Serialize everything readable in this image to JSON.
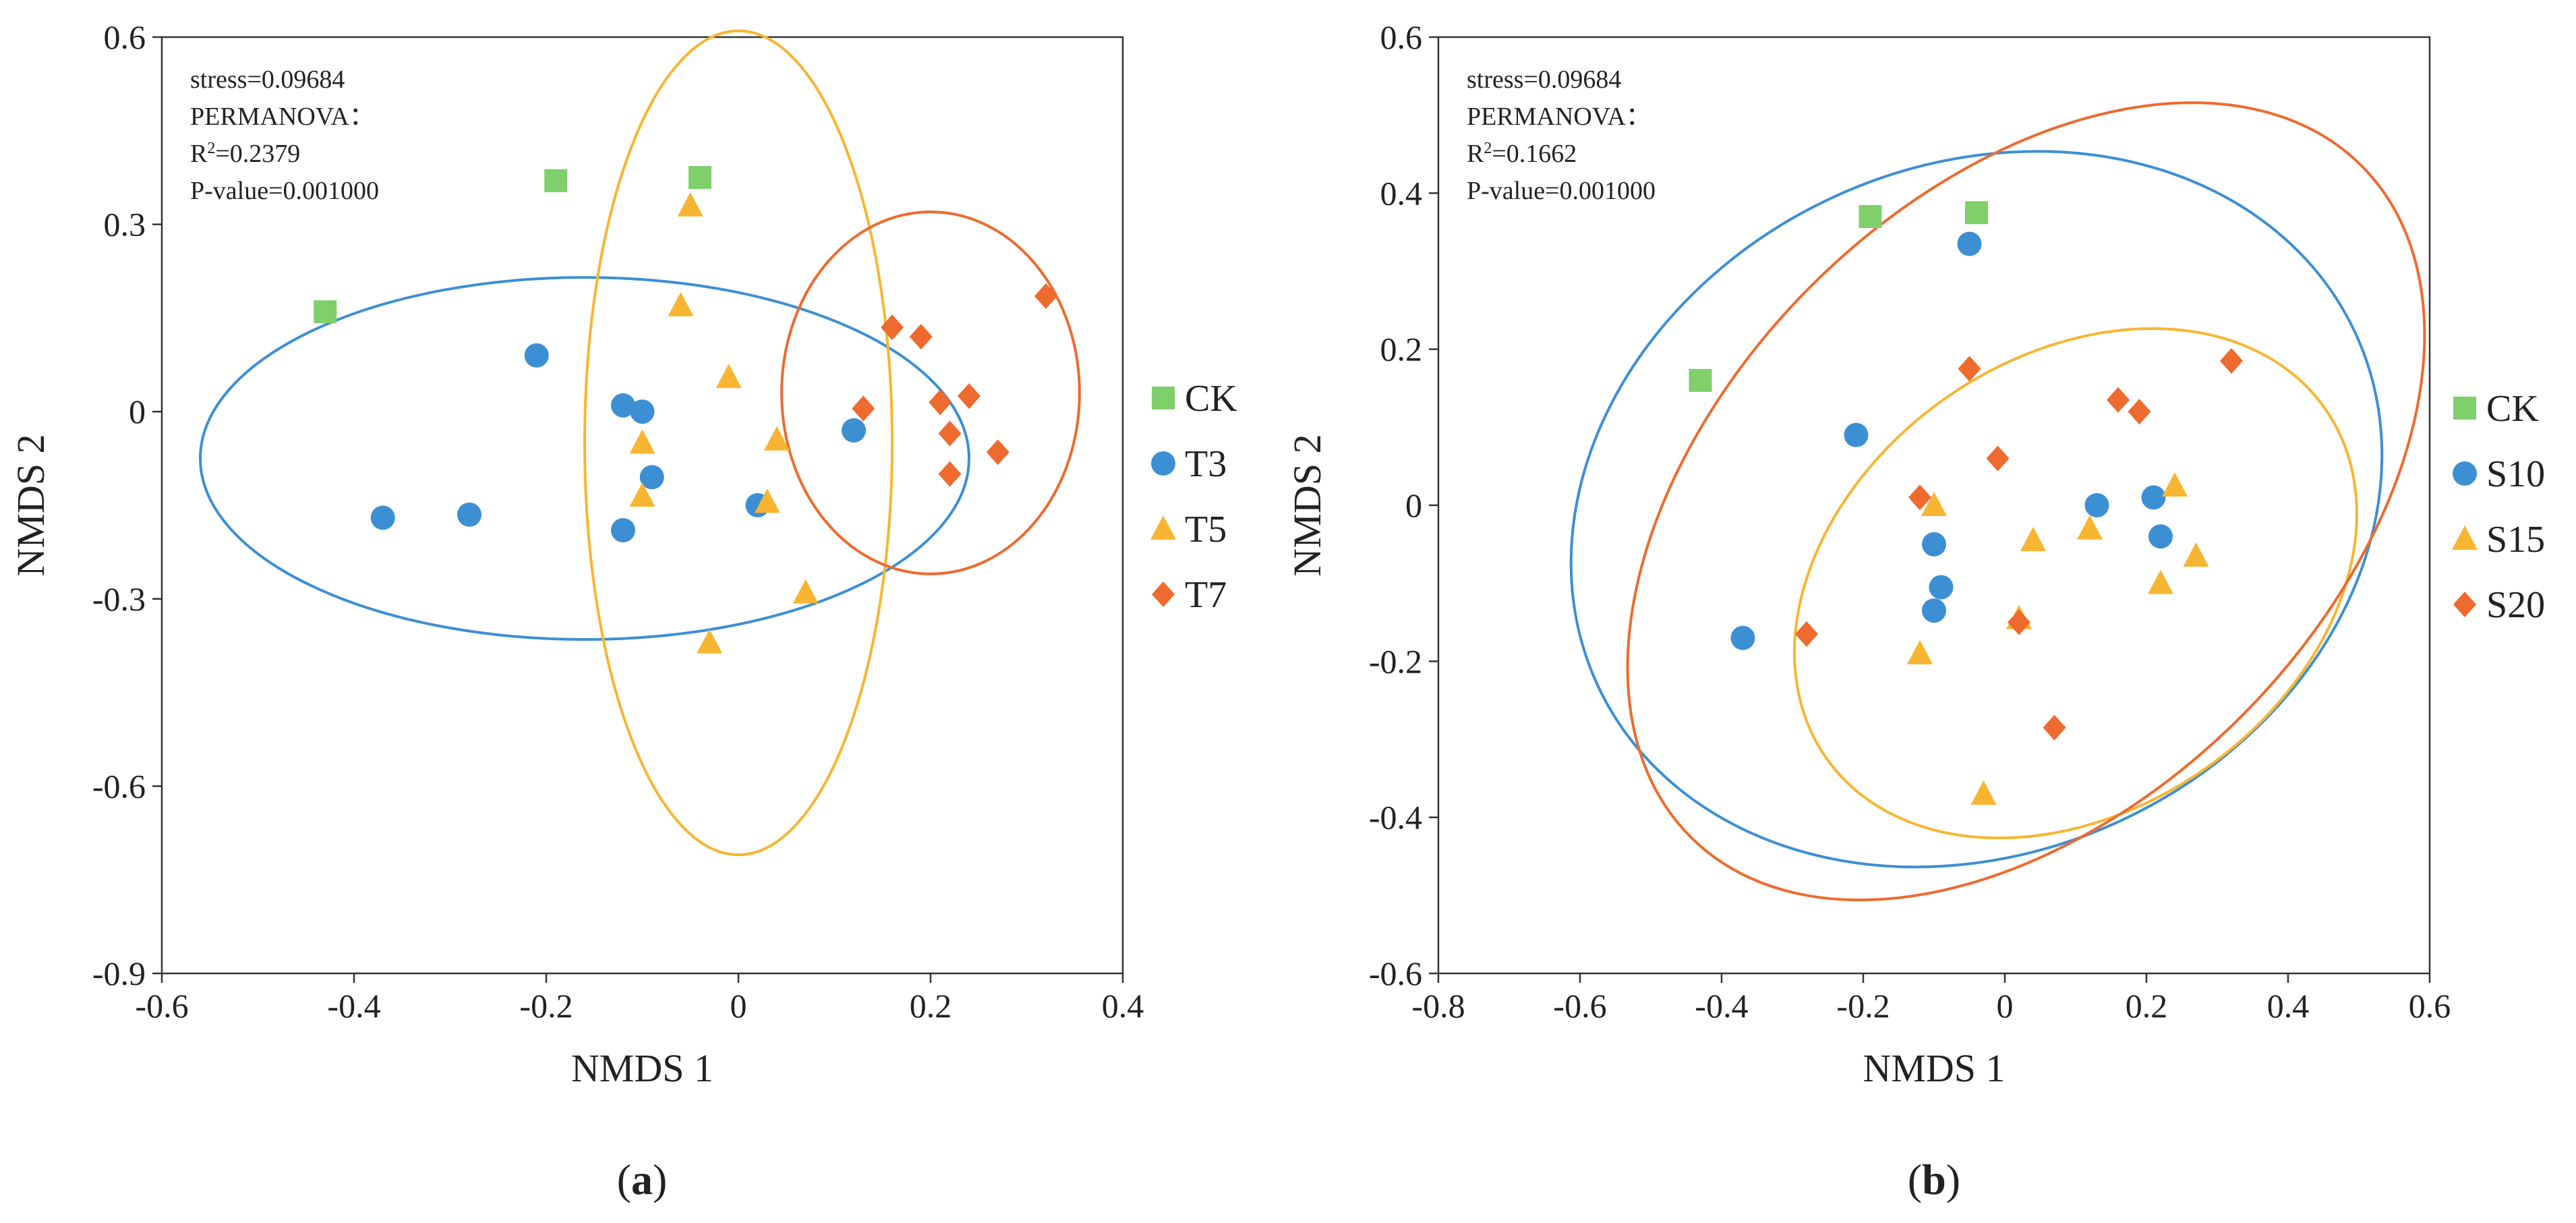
{
  "chart_data": [
    {
      "type": "scatter",
      "panel_label": "(a)",
      "xlabel": "NMDS 1",
      "ylabel": "NMDS 2",
      "xlim": [
        -0.6,
        0.4
      ],
      "ylim": [
        -0.9,
        0.6
      ],
      "xticks": [
        "-0.6",
        "-0.4",
        "-0.2",
        "0",
        "0.2",
        "0.4"
      ],
      "yticks": [
        "0.6",
        "0.3",
        "0",
        "-0.3",
        "-0.6",
        "-0.9"
      ],
      "annotation": [
        "stress=0.09684",
        "PERMANOVA：",
        "R²=0.2379",
        "P-value=0.001000"
      ],
      "legend_position": "right",
      "series": [
        {
          "name": "CK",
          "marker": "square",
          "color": "#7fcf6a",
          "points": [
            [
              -0.43,
              0.16
            ],
            [
              -0.19,
              0.37
            ],
            [
              -0.04,
              0.375
            ]
          ]
        },
        {
          "name": "T3",
          "marker": "circle",
          "color": "#3d8fd4",
          "points": [
            [
              -0.37,
              -0.17
            ],
            [
              -0.28,
              -0.165
            ],
            [
              -0.21,
              0.09
            ],
            [
              -0.12,
              0.01
            ],
            [
              -0.1,
              0.0
            ],
            [
              -0.09,
              -0.105
            ],
            [
              -0.12,
              -0.19
            ],
            [
              0.02,
              -0.15
            ],
            [
              0.12,
              -0.03
            ]
          ]
        },
        {
          "name": "T5",
          "marker": "triangle",
          "color": "#f7b531",
          "points": [
            [
              -0.05,
              0.33
            ],
            [
              -0.06,
              0.17
            ],
            [
              -0.01,
              0.055
            ],
            [
              -0.1,
              -0.05
            ],
            [
              -0.1,
              -0.135
            ],
            [
              0.04,
              -0.045
            ],
            [
              0.03,
              -0.145
            ],
            [
              -0.03,
              -0.37
            ],
            [
              0.07,
              -0.29
            ]
          ]
        },
        {
          "name": "T7",
          "marker": "diamond",
          "color": "#ee6a2e",
          "points": [
            [
              0.16,
              0.135
            ],
            [
              0.19,
              0.12
            ],
            [
              0.13,
              0.005
            ],
            [
              0.21,
              0.015
            ],
            [
              0.24,
              0.025
            ],
            [
              0.22,
              -0.035
            ],
            [
              0.22,
              -0.1
            ],
            [
              0.27,
              -0.065
            ],
            [
              0.32,
              0.185
            ]
          ]
        }
      ],
      "ellipses": [
        {
          "series": "T3",
          "center": [
            -0.16,
            -0.075
          ],
          "rx": 0.4,
          "ry": 0.29,
          "angle_deg": 0
        },
        {
          "series": "T5",
          "center": [
            -0.0,
            -0.05
          ],
          "rx": 0.16,
          "ry": 0.66,
          "angle_deg": 0
        },
        {
          "series": "T7",
          "center": [
            0.2,
            0.03
          ],
          "rx": 0.155,
          "ry": 0.29,
          "angle_deg": 0
        }
      ]
    },
    {
      "type": "scatter",
      "panel_label": "(b)",
      "xlabel": "NMDS 1",
      "ylabel": "NMDS 2",
      "xlim": [
        -0.8,
        0.6
      ],
      "ylim": [
        -0.6,
        0.6
      ],
      "xticks": [
        "-0.8",
        "-0.6",
        "-0.4",
        "-0.2",
        "0",
        "0.2",
        "0.4",
        "0.6"
      ],
      "yticks": [
        "0.6",
        "0.4",
        "0.2",
        "0",
        "-0.2",
        "-0.4",
        "-0.6"
      ],
      "annotation": [
        "stress=0.09684",
        "PERMANOVA：",
        "R²=0.1662",
        "P-value=0.001000"
      ],
      "legend_position": "right",
      "series": [
        {
          "name": "CK",
          "marker": "square",
          "color": "#7fcf6a",
          "points": [
            [
              -0.43,
              0.16
            ],
            [
              -0.19,
              0.37
            ],
            [
              -0.04,
              0.375
            ]
          ]
        },
        {
          "name": "S10",
          "marker": "circle",
          "color": "#3d8fd4",
          "points": [
            [
              -0.37,
              -0.17
            ],
            [
              -0.21,
              0.09
            ],
            [
              -0.05,
              0.335
            ],
            [
              -0.1,
              -0.05
            ],
            [
              -0.09,
              -0.105
            ],
            [
              -0.1,
              -0.135
            ],
            [
              0.13,
              0.0
            ],
            [
              0.21,
              0.01
            ],
            [
              0.22,
              -0.04
            ]
          ]
        },
        {
          "name": "S15",
          "marker": "triangle",
          "color": "#f7b531",
          "points": [
            [
              -0.1,
              0.0
            ],
            [
              -0.12,
              -0.19
            ],
            [
              0.04,
              -0.045
            ],
            [
              0.12,
              -0.03
            ],
            [
              0.24,
              0.025
            ],
            [
              0.22,
              -0.1
            ],
            [
              0.27,
              -0.065
            ],
            [
              0.02,
              -0.145
            ],
            [
              -0.03,
              -0.37
            ]
          ]
        },
        {
          "name": "S20",
          "marker": "diamond",
          "color": "#ee6a2e",
          "points": [
            [
              -0.05,
              0.175
            ],
            [
              -0.01,
              0.06
            ],
            [
              -0.12,
              0.01
            ],
            [
              0.16,
              0.135
            ],
            [
              0.19,
              0.12
            ],
            [
              0.32,
              0.185
            ],
            [
              -0.28,
              -0.165
            ],
            [
              0.02,
              -0.15
            ],
            [
              0.07,
              -0.285
            ]
          ]
        }
      ],
      "ellipses": [
        {
          "series": "S10",
          "center": [
            -0.04,
            -0.005
          ],
          "rx": 0.59,
          "ry": 0.44,
          "angle_deg": 25
        },
        {
          "series": "S15",
          "center": [
            0.1,
            -0.1
          ],
          "rx": 0.43,
          "ry": 0.29,
          "angle_deg": 35
        },
        {
          "series": "S20",
          "center": [
            0.03,
            0.005
          ],
          "rx": 0.67,
          "ry": 0.39,
          "angle_deg": 45
        }
      ]
    }
  ]
}
